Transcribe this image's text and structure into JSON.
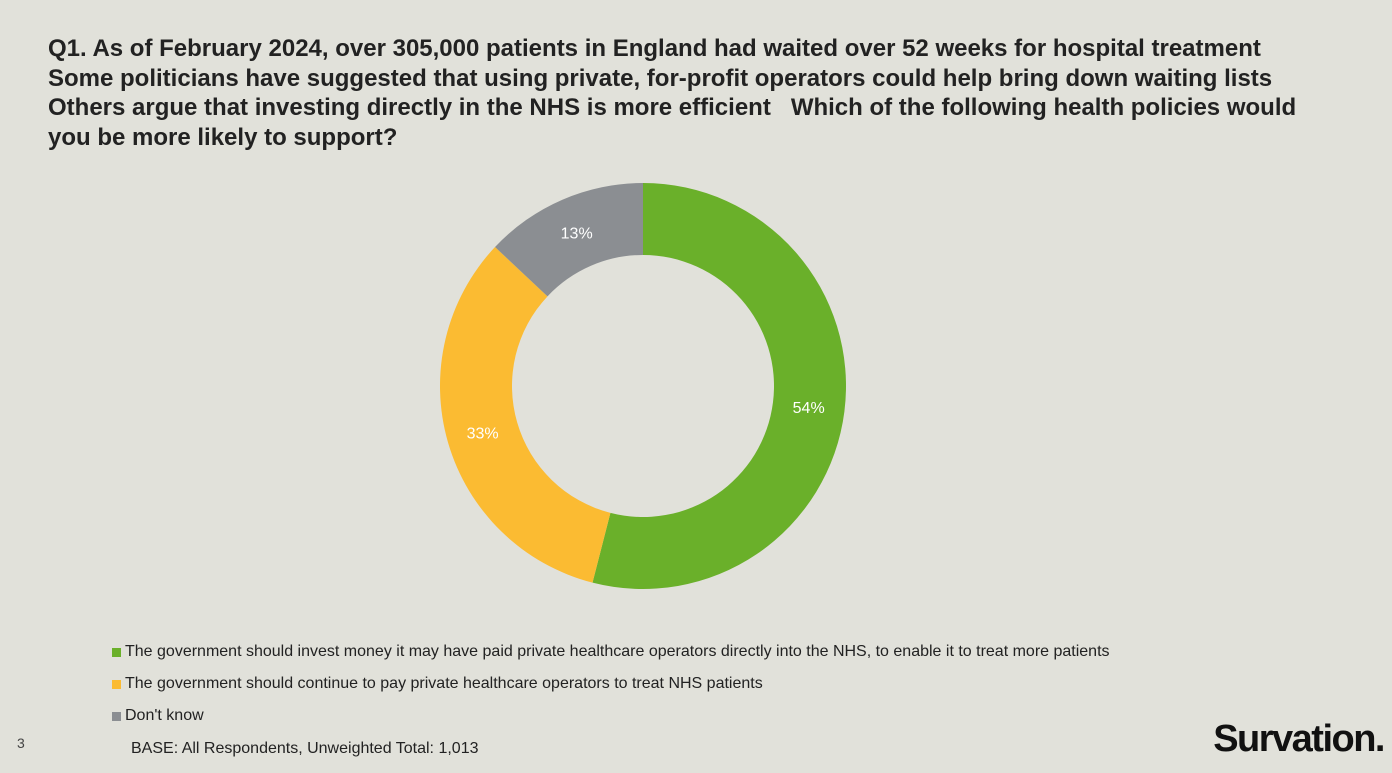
{
  "slide": {
    "title": "Q1. As of February 2024, over 305,000 patients in England had waited over 52 weeks for hospital treatment  Some politicians have suggested that using private, for-profit operators could help bring down waiting lists  Others argue that investing directly in the NHS is more efficient   Which of the following health policies would you be more likely to support?",
    "base_note": "BASE: All Respondents, Unweighted Total: 1,013",
    "page_number": "3",
    "logo": "Survation."
  },
  "chart_data": {
    "type": "pie",
    "variant": "donut",
    "title": "",
    "start": "top",
    "direction": "clockwise",
    "legend_position": "bottom-left",
    "slices": [
      {
        "label": "The government should invest money it may have paid private healthcare operators directly into the NHS, to enable it to treat more patients",
        "value": 54,
        "display": "54%",
        "color": "#6ab02a"
      },
      {
        "label": "The government should continue to pay private healthcare operators to treat NHS patients",
        "value": 33,
        "display": "33%",
        "color": "#fbbb32"
      },
      {
        "label": "Don't know",
        "value": 13,
        "display": "13%",
        "color": "#8b8e92"
      }
    ]
  }
}
